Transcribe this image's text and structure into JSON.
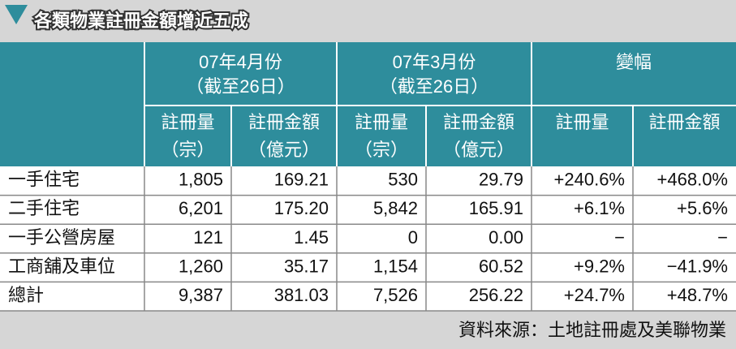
{
  "title": "各類物業註冊金額增近五成",
  "header": {
    "groups": [
      {
        "label": "07年4月份",
        "sub": "（截至26日）"
      },
      {
        "label": "07年3月份",
        "sub": "（截至26日）"
      },
      {
        "label": "變幅"
      }
    ],
    "columns": [
      {
        "name": "註冊量",
        "unit": "（宗）"
      },
      {
        "name": "註冊金額",
        "unit": "（億元）"
      },
      {
        "name": "註冊量",
        "unit": "（宗）"
      },
      {
        "name": "註冊金額",
        "unit": "（億元）"
      },
      {
        "name": "註冊量"
      },
      {
        "name": "註冊金額"
      }
    ]
  },
  "table": {
    "rows": [
      [
        "一手住宅",
        "1,805",
        "169.21",
        "530",
        "29.79",
        "+240.6%",
        "+468.0%"
      ],
      [
        "二手住宅",
        "6,201",
        "175.20",
        "5,842",
        "165.91",
        "+6.1%",
        "+5.6%"
      ],
      [
        "一手公營房屋",
        "121",
        "1.45",
        "0",
        "0.00",
        "−",
        "−"
      ],
      [
        "工商舖及車位",
        "1,260",
        "35.17",
        "1,154",
        "60.52",
        "+9.2%",
        "−41.9%"
      ],
      [
        "總計",
        "9,387",
        "381.03",
        "7,526",
        "256.22",
        "+24.7%",
        "+48.7%"
      ]
    ]
  },
  "source": "資料來源：土地註冊處及美聯物業"
}
